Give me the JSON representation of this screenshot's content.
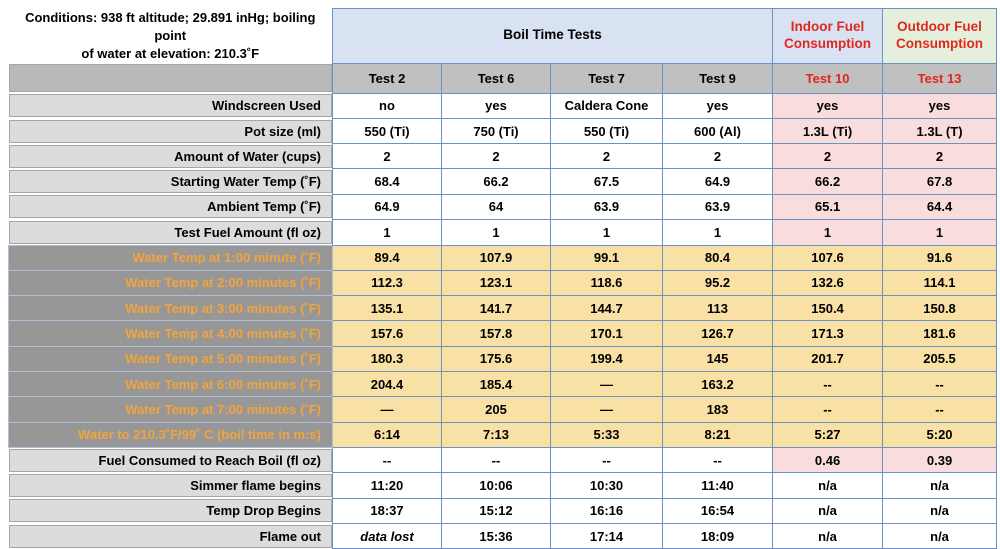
{
  "conditions_line1": "Conditions: 938 ft altitude; 29.891 inHg; boiling point",
  "conditions_line2": "of water at elevation: 210.3˚F",
  "header": {
    "main": "Boil Time Tests",
    "indoor": "Indoor Fuel Consumption",
    "outdoor": "Outdoor Fuel Consumption"
  },
  "colors": {
    "header_blue": "#d8e2f2",
    "header_green": "#e4efdc",
    "column_header_gray": "#c0c0c0",
    "label_light_gray": "#dcdcdc",
    "label_dark_gray": "#979797",
    "tan_cell": "#f9e1a6",
    "pink_cell": "#f9dddd",
    "red_text": "#e0291d",
    "blue_text": "#4a80d8",
    "green_text": "#72ad5c",
    "orange_label_text": "#f2a43d",
    "orange_value_text": "#e8813a",
    "grid_border_blue": "#6b92c7"
  },
  "chart_data": {
    "type": "table",
    "title": "Boil Time Tests",
    "conditions": "Conditions: 938 ft altitude; 29.891 inHg; boiling point of water at elevation: 210.3˚F",
    "column_groups": [
      {
        "label": "Boil Time Tests",
        "span": 4
      },
      {
        "label": "Indoor Fuel Consumption",
        "span": 1
      },
      {
        "label": "Outdoor Fuel Consumption",
        "span": 1
      }
    ],
    "columns": [
      "Test 2",
      "Test 6",
      "Test 7",
      "Test 9",
      "Test 10",
      "Test 13"
    ],
    "rows": [
      {
        "label": "Windscreen Used",
        "label_style": "light",
        "bg": "white",
        "pink_last2": true,
        "color": "black",
        "cells": [
          "no",
          "yes",
          "Caldera Cone",
          "yes",
          "yes",
          "yes"
        ]
      },
      {
        "label": "Pot size (ml)",
        "label_style": "light",
        "bg": "white",
        "pink_last2": true,
        "color": "black",
        "cells": [
          "550 (Ti)",
          "750 (Ti)",
          "550 (Ti)",
          "600 (Al)",
          "1.3L (Ti)",
          "1.3L (T)"
        ]
      },
      {
        "label": "Amount of Water (cups)",
        "label_style": "light",
        "bg": "white",
        "pink_last2": true,
        "color": "black",
        "cells": [
          "2",
          "2",
          "2",
          "2",
          "2",
          "2"
        ]
      },
      {
        "label": "Starting Water Temp (˚F)",
        "label_style": "light",
        "bg": "white",
        "pink_last2": true,
        "color": "blue",
        "cells": [
          "68.4",
          "66.2",
          "67.5",
          "64.9",
          "66.2",
          "67.8"
        ]
      },
      {
        "label": "Ambient Temp (˚F)",
        "label_style": "light",
        "bg": "white",
        "pink_last2": true,
        "color": "green",
        "cells": [
          "64.9",
          "64",
          "63.9",
          "63.9",
          "65.1",
          "64.4"
        ]
      },
      {
        "label": "Test Fuel Amount (fl oz)",
        "label_style": "light",
        "bg": "white",
        "pink_last2": true,
        "color": "black",
        "cells": [
          "1",
          "1",
          "1",
          "1",
          "1",
          "1"
        ]
      },
      {
        "label": "Water Temp at 1:00 minute (˚F)",
        "label_style": "dark",
        "bg": "tan",
        "pink_last2": false,
        "color": "black",
        "cells": [
          "89.4",
          "107.9",
          "99.1",
          "80.4",
          "107.6",
          "91.6"
        ]
      },
      {
        "label": "Water Temp at 2:00 minutes (˚F)",
        "label_style": "dark",
        "bg": "tan",
        "pink_last2": false,
        "color": "black",
        "cells": [
          "112.3",
          "123.1",
          "118.6",
          "95.2",
          "132.6",
          "114.1"
        ]
      },
      {
        "label": "Water Temp at 3:00 minutes (˚F)",
        "label_style": "dark",
        "bg": "tan",
        "pink_last2": false,
        "color": "black",
        "cells": [
          "135.1",
          "141.7",
          "144.7",
          "113",
          "150.4",
          "150.8"
        ]
      },
      {
        "label": "Water Temp at 4:00 minutes (˚F)",
        "label_style": "dark",
        "bg": "tan",
        "pink_last2": false,
        "color": "black",
        "cells": [
          "157.6",
          "157.8",
          "170.1",
          "126.7",
          "171.3",
          "181.6"
        ]
      },
      {
        "label": "Water Temp at 5:00 minutes (˚F)",
        "label_style": "dark",
        "bg": "tan",
        "pink_last2": false,
        "color": "black",
        "cells": [
          "180.3",
          "175.6",
          "199.4",
          "145",
          "201.7",
          "205.5"
        ]
      },
      {
        "label": "Water Temp at 6:00 minutes (˚F)",
        "label_style": "dark",
        "bg": "tan",
        "pink_last2": false,
        "color": "black",
        "cells": [
          "204.4",
          "185.4",
          "—",
          "163.2",
          "--",
          "--"
        ]
      },
      {
        "label": "Water Temp at 7:00 minutes (˚F)",
        "label_style": "dark",
        "bg": "tan",
        "pink_last2": false,
        "color": "black",
        "cells": [
          "—",
          "205",
          "—",
          "183",
          "--",
          "--"
        ]
      },
      {
        "label": "Water to 210.3˚F/99˚ C (boil time in m:s)",
        "label_style": "dark",
        "bg": "tan",
        "pink_last2": false,
        "color": "red",
        "cells": [
          "6:14",
          "7:13",
          "5:33",
          "8:21",
          "5:27",
          "5:20"
        ]
      },
      {
        "label": "Fuel Consumed to Reach Boil (fl oz)",
        "label_style": "light",
        "bg": "white",
        "pink_last2": false,
        "color": "black",
        "cells": [
          "--",
          "--",
          "--",
          "--",
          {
            "t": "0.46",
            "color": "red",
            "bg": "pink"
          },
          {
            "t": "0.39",
            "color": "red",
            "bg": "pink"
          }
        ]
      },
      {
        "label": "Simmer flame begins",
        "label_style": "light",
        "bg": "white",
        "pink_last2": false,
        "color": "black",
        "cells": [
          "11:20",
          "10:06",
          "10:30",
          "11:40",
          "n/a",
          "n/a"
        ]
      },
      {
        "label": "Temp Drop Begins",
        "label_style": "light",
        "bg": "white",
        "pink_last2": false,
        "color": "black",
        "cells": [
          "18:37",
          "15:12",
          "16:16",
          "16:54",
          "n/a",
          "n/a"
        ]
      },
      {
        "label": "Flame out",
        "label_style": "light",
        "bg": "white",
        "pink_last2": false,
        "color": "black",
        "cells": [
          {
            "t": "data lost",
            "color": "orange",
            "italic": true
          },
          {
            "t": "15:36",
            "color": "orange"
          },
          {
            "t": "17:14",
            "color": "orange"
          },
          {
            "t": "18:09",
            "color": "orange"
          },
          "n/a",
          "n/a"
        ]
      }
    ]
  }
}
